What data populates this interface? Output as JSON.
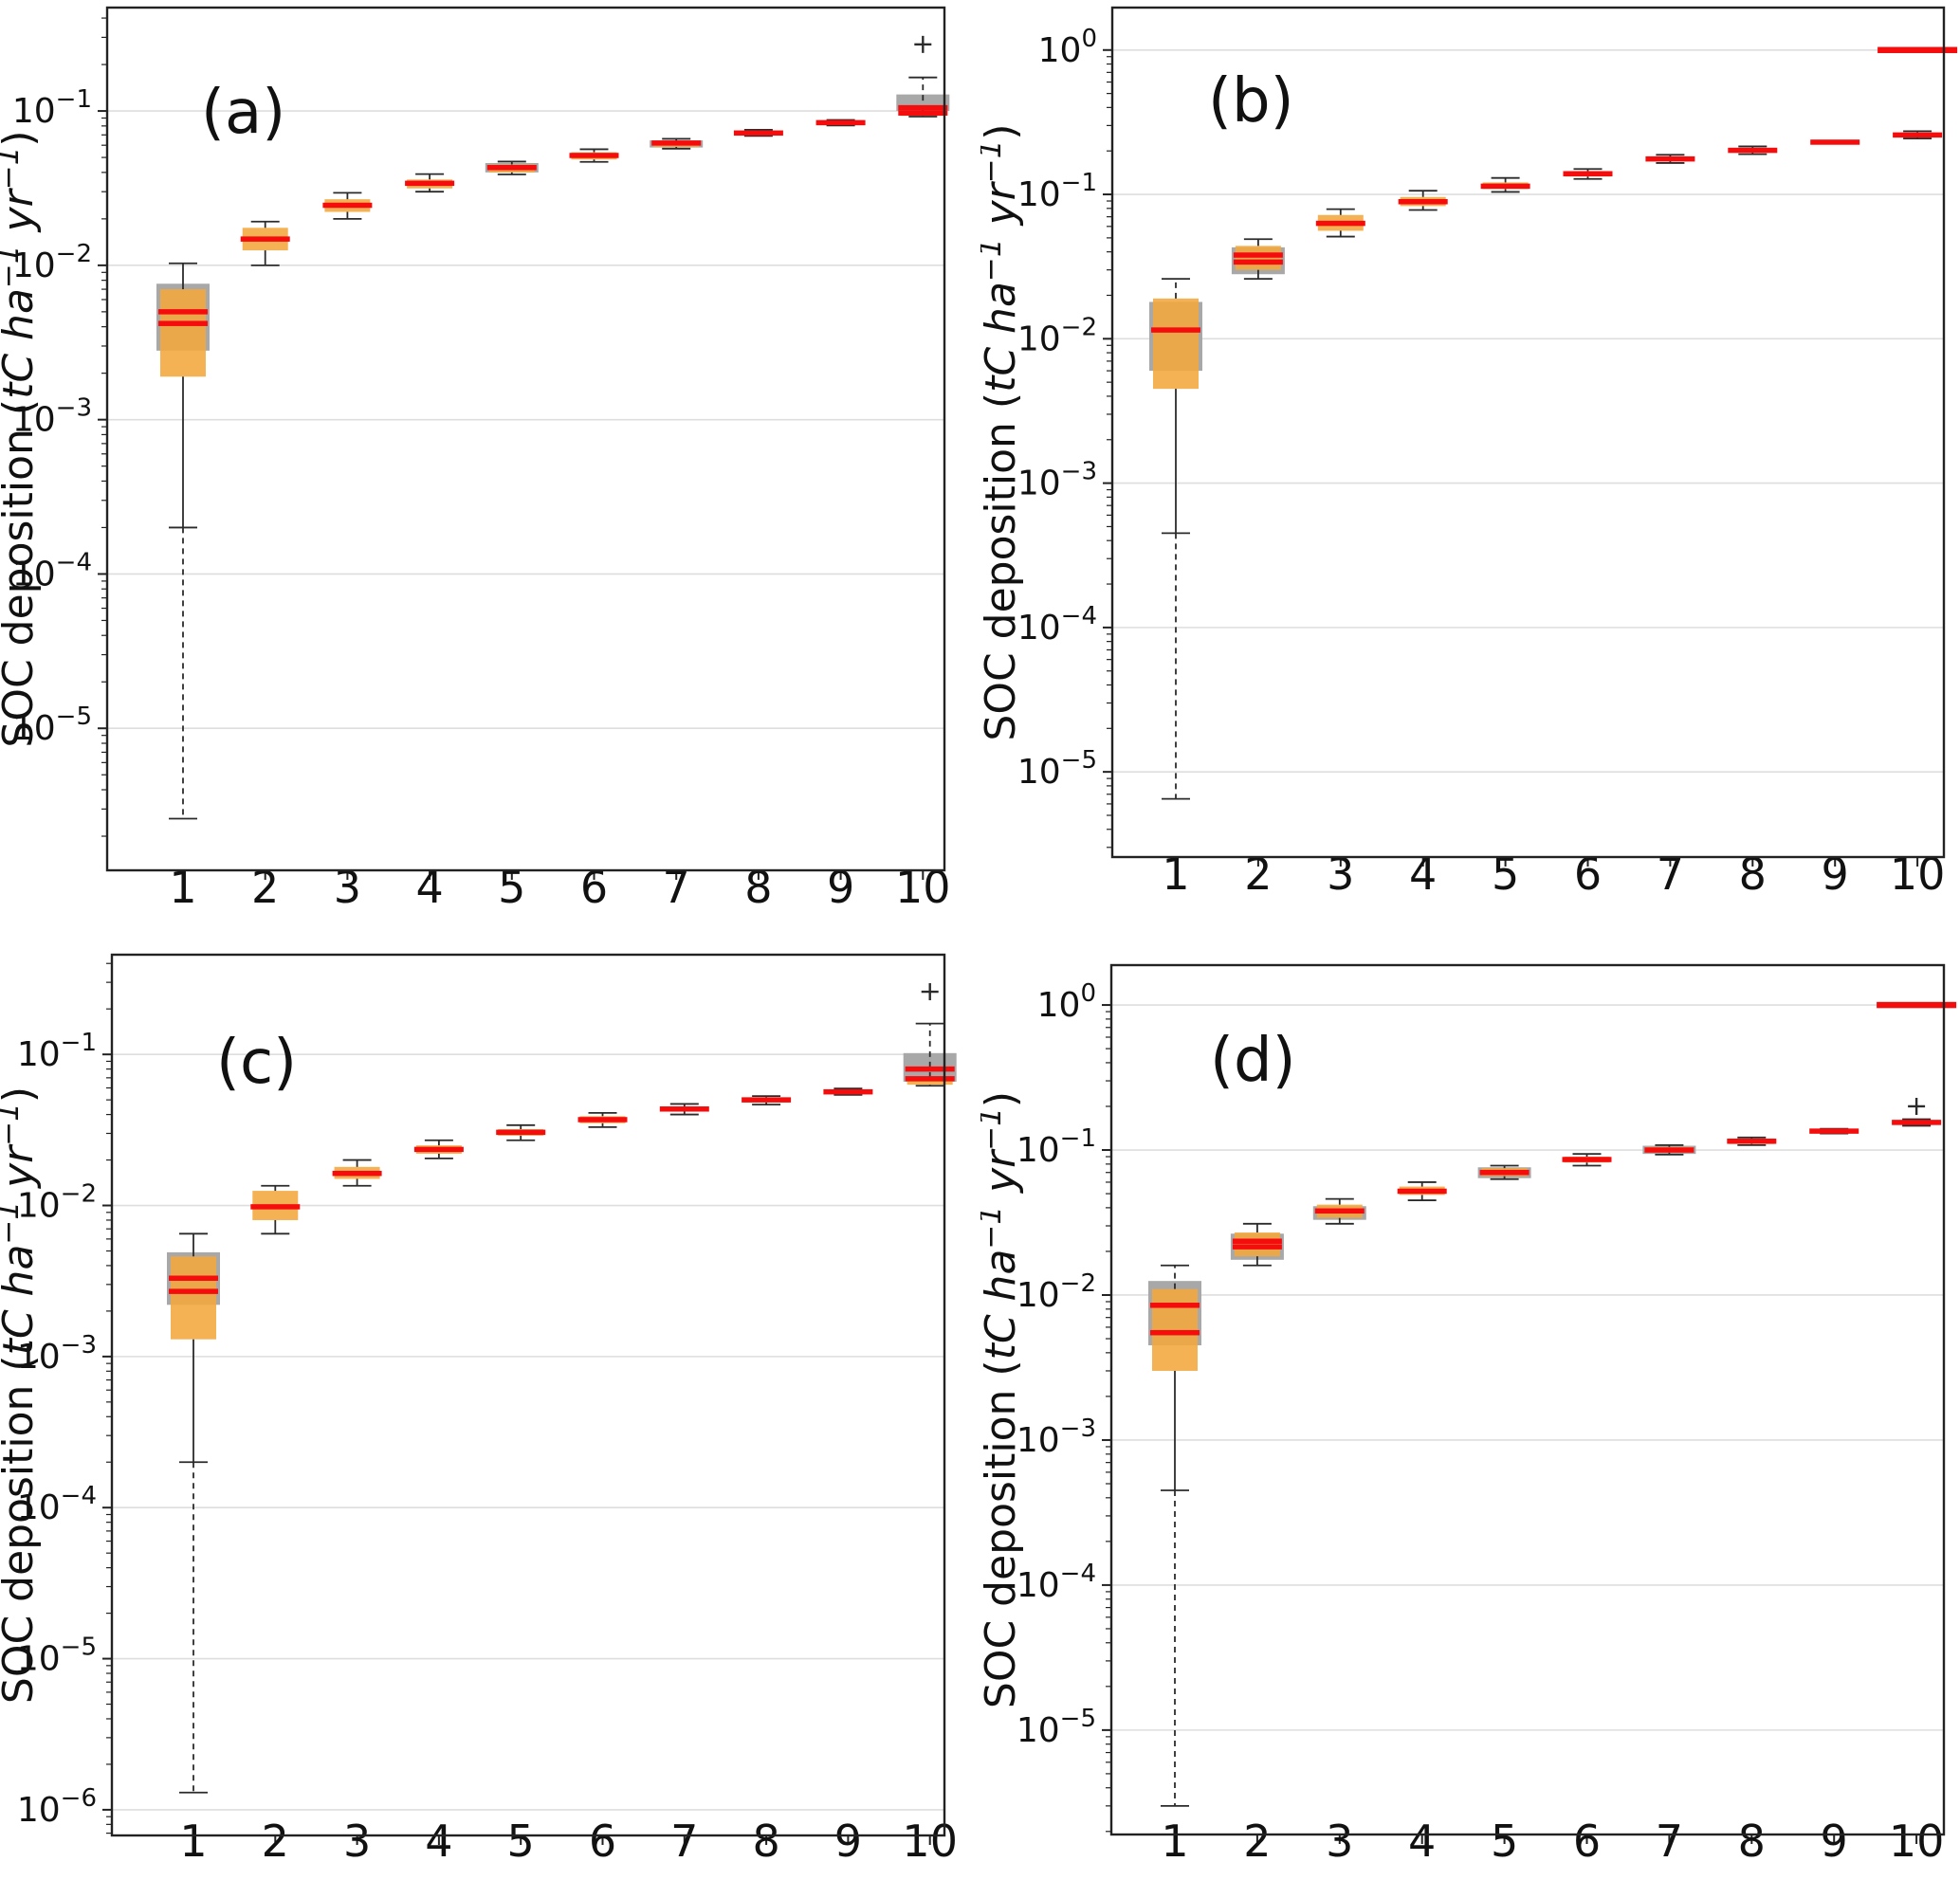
{
  "figure": {
    "background": "#ffffff",
    "colors": {
      "box_orange": "#F2A73C",
      "box_gray": "#A8A8A8",
      "median_red": "#F50D0D",
      "whisker": "#2B2B2B",
      "gridline": "#DEDEDE",
      "axis": "#222222",
      "text": "#111111"
    },
    "ylabel_text": "SOC deposition (tC ha−1 yr−1)",
    "ylabel_runs": [
      {
        "t": "SOC deposition ("
      },
      {
        "t": "tC ha",
        "i": true
      },
      {
        "t": "−1",
        "i": true,
        "s": true
      },
      {
        "t": " yr",
        "i": true
      },
      {
        "t": "−1",
        "i": true,
        "s": true
      },
      {
        "t": ")"
      }
    ]
  },
  "chart_data": [
    {
      "id": "a",
      "panel_label": "(a)",
      "type": "boxplot",
      "yscale": "log",
      "ylabel": "SOC deposition (tC ha−1 yr−1)",
      "x_ticks": [
        "1",
        "2",
        "3",
        "4",
        "5",
        "6",
        "7",
        "8",
        "9",
        "10"
      ],
      "y_ticks_exp": [
        -1,
        -2,
        -3,
        -4,
        -5
      ],
      "ylim_log": [
        -5.92,
        -0.33
      ],
      "grid": true,
      "boxes": [
        {
          "cat": "1",
          "gray": [
            0.0028,
            0.0076
          ],
          "orange": [
            0.0019,
            0.007
          ],
          "med": [
            0.005,
            0.0042
          ],
          "whi": 0.0103,
          "wlo": 0.0002,
          "wlo2": 2.6e-06
        },
        {
          "cat": "2",
          "orange": [
            0.0125,
            0.0175
          ],
          "med": [
            0.0148
          ],
          "whi": 0.0192,
          "wlo": 0.01
        },
        {
          "cat": "3",
          "orange": [
            0.0222,
            0.0268
          ],
          "med": [
            0.0245
          ],
          "whi": 0.0295,
          "wlo": 0.02
        },
        {
          "cat": "4",
          "orange": [
            0.0315,
            0.036
          ],
          "med": [
            0.034
          ],
          "whi": 0.039,
          "wlo": 0.03
        },
        {
          "cat": "5",
          "gray": [
            0.04,
            0.046
          ],
          "orange": [
            0.04,
            0.045
          ],
          "med": [
            0.043
          ],
          "whi": 0.047,
          "wlo": 0.0388
        },
        {
          "cat": "6",
          "orange": [
            0.0485,
            0.054
          ],
          "med": [
            0.0515
          ],
          "whi": 0.0565,
          "wlo": 0.0468
        },
        {
          "cat": "7",
          "gray": [
            0.058,
            0.0645
          ],
          "orange": [
            0.0585,
            0.064
          ],
          "med": [
            0.062
          ],
          "whi": 0.066,
          "wlo": 0.057
        },
        {
          "cat": "8",
          "orange": [
            0.07,
            0.074
          ],
          "med": [
            0.072
          ],
          "whi": 0.0755,
          "wlo": 0.069
        },
        {
          "cat": "9",
          "orange": [
            0.082,
            0.086
          ],
          "med": [
            0.084
          ],
          "whi": 0.0875,
          "wlo": 0.0805
        },
        {
          "cat": "10",
          "gray": [
            0.1,
            0.128
          ],
          "orange": [
            0.093,
            0.1
          ],
          "med": [
            0.105,
            0.097
          ],
          "whi": 0.165,
          "whi_dash": true,
          "wlo": 0.092,
          "outliers": [
            0.27
          ]
        }
      ]
    },
    {
      "id": "b",
      "panel_label": "(b)",
      "type": "boxplot",
      "yscale": "log",
      "ylabel": "SOC deposition (tC ha−1 yr−1)",
      "x_ticks": [
        "1",
        "2",
        "3",
        "4",
        "5",
        "6",
        "7",
        "8",
        "9",
        "10"
      ],
      "y_ticks_exp": [
        0,
        -1,
        -2,
        -3,
        -4,
        -5
      ],
      "ylim_log": [
        -5.59,
        0.294
      ],
      "grid": true,
      "boxes": [
        {
          "cat": "1",
          "gray": [
            0.006,
            0.018
          ],
          "orange": [
            0.0045,
            0.019
          ],
          "med": [
            0.0115
          ],
          "whi": 0.026,
          "whi_dash": true,
          "wlo": 0.00045,
          "wlo2": 6.5e-06
        },
        {
          "cat": "2",
          "gray": [
            0.028,
            0.043
          ],
          "orange": [
            0.03,
            0.044
          ],
          "med": [
            0.038,
            0.034
          ],
          "whi": 0.049,
          "wlo": 0.026
        },
        {
          "cat": "3",
          "orange": [
            0.056,
            0.072
          ],
          "med": [
            0.063
          ],
          "whi": 0.079,
          "wlo": 0.051
        },
        {
          "cat": "4",
          "orange": [
            0.083,
            0.096
          ],
          "med": [
            0.089
          ],
          "whi": 0.106,
          "wlo": 0.078
        },
        {
          "cat": "5",
          "orange": [
            0.109,
            0.121
          ],
          "med": [
            0.114
          ],
          "whi": 0.13,
          "wlo": 0.104
        },
        {
          "cat": "6",
          "orange": [
            0.133,
            0.145
          ],
          "med": [
            0.139
          ],
          "whi": 0.15,
          "wlo": 0.128
        },
        {
          "cat": "7",
          "orange": [
            0.17,
            0.182
          ],
          "med": [
            0.176
          ],
          "whi": 0.188,
          "wlo": 0.165
        },
        {
          "cat": "8",
          "orange": [
            0.195,
            0.21
          ],
          "med": [
            0.202
          ],
          "whi": 0.215,
          "wlo": 0.19
        },
        {
          "cat": "9",
          "med": [
            0.23
          ]
        },
        {
          "cat": "10",
          "orange": [
            0.25,
            0.268
          ],
          "med": [
            1.0,
            0.258
          ],
          "whi": 0.274,
          "wlo": 0.244
        }
      ]
    },
    {
      "id": "c",
      "panel_label": "(c)",
      "type": "boxplot",
      "yscale": "log",
      "ylabel": "SOC deposition (tC ha−1 yr−1)",
      "x_ticks": [
        "1",
        "2",
        "3",
        "4",
        "5",
        "6",
        "7",
        "8",
        "9",
        "10"
      ],
      "y_ticks_exp": [
        -1,
        -2,
        -3,
        -4,
        -5,
        -6
      ],
      "ylim_log": [
        -6.17,
        -0.34
      ],
      "grid": true,
      "boxes": [
        {
          "cat": "1",
          "gray": [
            0.0022,
            0.0049
          ],
          "orange": [
            0.0013,
            0.0046
          ],
          "med": [
            0.0033,
            0.0027
          ],
          "whi": 0.0065,
          "wlo": 0.0002,
          "wlo2": 1.3e-06
        },
        {
          "cat": "2",
          "orange": [
            0.008,
            0.0125
          ],
          "med": [
            0.0098
          ],
          "whi": 0.0135,
          "wlo": 0.0065
        },
        {
          "cat": "3",
          "orange": [
            0.015,
            0.018
          ],
          "med": [
            0.0163
          ],
          "whi": 0.02,
          "wlo": 0.0135
        },
        {
          "cat": "4",
          "orange": [
            0.022,
            0.025
          ],
          "med": [
            0.0235
          ],
          "whi": 0.027,
          "wlo": 0.0205
        },
        {
          "cat": "5",
          "orange": [
            0.029,
            0.032
          ],
          "med": [
            0.0305
          ],
          "whi": 0.034,
          "wlo": 0.027
        },
        {
          "cat": "6",
          "orange": [
            0.035,
            0.039
          ],
          "med": [
            0.037
          ],
          "whi": 0.041,
          "wlo": 0.033
        },
        {
          "cat": "7",
          "orange": [
            0.042,
            0.045
          ],
          "med": [
            0.0435
          ],
          "whi": 0.047,
          "wlo": 0.04
        },
        {
          "cat": "8",
          "orange": [
            0.048,
            0.052
          ],
          "med": [
            0.05
          ],
          "whi": 0.053,
          "wlo": 0.0465
        },
        {
          "cat": "9",
          "orange": [
            0.055,
            0.058
          ],
          "med": [
            0.0565
          ],
          "whi": 0.0595,
          "wlo": 0.054
        },
        {
          "cat": "10",
          "gray": [
            0.066,
            0.102
          ],
          "orange": [
            0.063,
            0.07
          ],
          "med": [
            0.08,
            0.069
          ],
          "whi": 0.16,
          "whi_dash": true,
          "wlo": 0.062,
          "outliers": [
            0.26
          ]
        }
      ]
    },
    {
      "id": "d",
      "panel_label": "(d)",
      "type": "boxplot",
      "yscale": "log",
      "ylabel": "SOC deposition (tC ha−1 yr−1)",
      "x_ticks": [
        "1",
        "2",
        "3",
        "4",
        "5",
        "6",
        "7",
        "8",
        "9",
        "10"
      ],
      "y_ticks_exp": [
        0,
        -1,
        -2,
        -3,
        -4,
        -5
      ],
      "ylim_log": [
        -5.72,
        0.275
      ],
      "grid": true,
      "boxes": [
        {
          "cat": "1",
          "gray": [
            0.0045,
            0.0125
          ],
          "orange": [
            0.003,
            0.011
          ],
          "med": [
            0.0085,
            0.0055
          ],
          "whi": 0.016,
          "whi_dash": true,
          "wlo": 0.00045,
          "wlo2": 3e-06
        },
        {
          "cat": "2",
          "gray": [
            0.0175,
            0.0265
          ],
          "orange": [
            0.0185,
            0.027
          ],
          "med": [
            0.0235,
            0.0215
          ],
          "whi": 0.031,
          "wlo": 0.016
        },
        {
          "cat": "3",
          "gray": [
            0.033,
            0.041
          ],
          "orange": [
            0.034,
            0.042
          ],
          "med": [
            0.038
          ],
          "whi": 0.046,
          "wlo": 0.031
        },
        {
          "cat": "4",
          "orange": [
            0.049,
            0.056
          ],
          "med": [
            0.052
          ],
          "whi": 0.06,
          "wlo": 0.045
        },
        {
          "cat": "5",
          "gray": [
            0.064,
            0.076
          ],
          "orange": [
            0.066,
            0.075
          ],
          "med": [
            0.07
          ],
          "whi": 0.078,
          "wlo": 0.063
        },
        {
          "cat": "6",
          "orange": [
            0.082,
            0.09
          ],
          "med": [
            0.086
          ],
          "whi": 0.094,
          "wlo": 0.078
        },
        {
          "cat": "7",
          "gray": [
            0.094,
            0.107
          ],
          "orange": [
            0.096,
            0.105
          ],
          "med": [
            0.1
          ],
          "whi": 0.108,
          "wlo": 0.093
        },
        {
          "cat": "8",
          "orange": [
            0.11,
            0.12
          ],
          "med": [
            0.115
          ],
          "whi": 0.122,
          "wlo": 0.108
        },
        {
          "cat": "9",
          "orange": [
            0.132,
            0.138
          ],
          "med": [
            0.135
          ],
          "whi": 0.14,
          "wlo": 0.13
        },
        {
          "cat": "10",
          "orange": [
            0.15,
            0.16
          ],
          "med": [
            1.0,
            0.155
          ],
          "whi": 0.163,
          "wlo": 0.147,
          "outliers": [
            0.2
          ]
        }
      ]
    }
  ]
}
